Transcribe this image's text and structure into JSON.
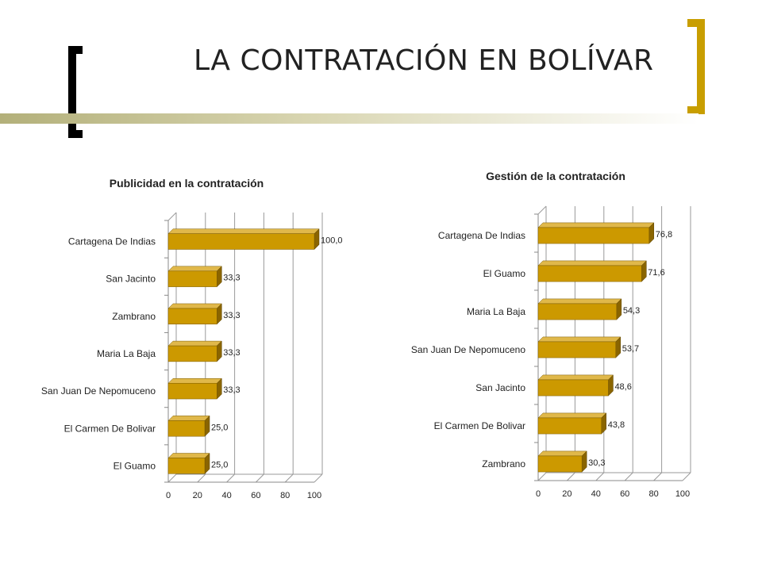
{
  "title": "LA CONTRATACIÓN EN BOLÍVAR",
  "colors": {
    "bar_front": "#cc9900",
    "bar_top": "#e0b84a",
    "bar_side": "#8a6500",
    "accent_bracket": "#c89e00",
    "dark_bracket": "#000000"
  },
  "chart_data": [
    {
      "type": "bar",
      "orientation": "horizontal",
      "style": "3d",
      "title": "Publicidad en la contratación",
      "categories": [
        "Cartagena De Indias",
        "San Jacinto",
        "Zambrano",
        "Maria La Baja",
        "San Juan De Nepomuceno",
        "El Carmen De Bolivar",
        "El Guamo"
      ],
      "values": [
        100.0,
        33.3,
        33.3,
        33.3,
        33.3,
        25.0,
        25.0
      ],
      "value_labels": [
        "100,0",
        "33,3",
        "33,3",
        "33,3",
        "33,3",
        "25,0",
        "25,0"
      ],
      "xlim": [
        0,
        100
      ],
      "xticks": [
        "0",
        "20",
        "40",
        "60",
        "80",
        "100"
      ],
      "grid": true,
      "legend": "none"
    },
    {
      "type": "bar",
      "orientation": "horizontal",
      "style": "3d",
      "title": "Gestión de la contratación",
      "categories": [
        "Cartagena De Indias",
        "El Guamo",
        "Maria La Baja",
        "San Juan De Nepomuceno",
        "San Jacinto",
        "El Carmen De Bolivar",
        "Zambrano"
      ],
      "values": [
        76.8,
        71.6,
        54.3,
        53.7,
        48.6,
        43.8,
        30.3
      ],
      "value_labels": [
        "76,8",
        "71,6",
        "54,3",
        "53,7",
        "48,6",
        "43,8",
        "30,3"
      ],
      "xlim": [
        0,
        100
      ],
      "xticks": [
        "0",
        "20",
        "40",
        "60",
        "80",
        "100"
      ],
      "grid": true,
      "legend": "none"
    }
  ]
}
